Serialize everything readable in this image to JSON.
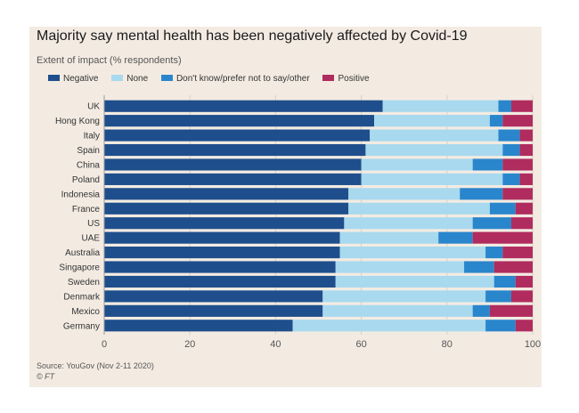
{
  "chart_data": {
    "type": "bar",
    "orientation": "horizontal",
    "stacked": true,
    "title": "Majority say mental health has been negatively affected by Covid-19",
    "subtitle": "Extent of impact (% respondents)",
    "xlim": [
      0,
      100
    ],
    "xticks": [
      "0",
      "20",
      "40",
      "60",
      "80",
      "100"
    ],
    "grid": true,
    "legend_position": "top-left",
    "categories": [
      "UK",
      "Hong Kong",
      "Italy",
      "Spain",
      "China",
      "Poland",
      "Indonesia",
      "France",
      "US",
      "UAE",
      "Australia",
      "Singapore",
      "Sweden",
      "Denmark",
      "Mexico",
      "Germany"
    ],
    "series": [
      {
        "name": "Negative",
        "color": "#1f4e8c",
        "values": [
          65,
          63,
          62,
          61,
          60,
          60,
          57,
          57,
          56,
          55,
          55,
          54,
          54,
          51,
          51,
          44
        ]
      },
      {
        "name": "None",
        "color": "#a8d9ef",
        "values": [
          27,
          27,
          30,
          32,
          26,
          33,
          26,
          33,
          30,
          23,
          34,
          30,
          37,
          38,
          35,
          45
        ]
      },
      {
        "name": "Don't know/prefer not to say/other",
        "color": "#2a86cc",
        "values": [
          3,
          3,
          5,
          4,
          7,
          4,
          10,
          6,
          9,
          8,
          4,
          7,
          5,
          6,
          4,
          7
        ]
      },
      {
        "name": "Positive",
        "color": "#b02c5e",
        "values": [
          5,
          7,
          3,
          3,
          7,
          3,
          7,
          4,
          5,
          14,
          7,
          9,
          4,
          5,
          10,
          4
        ]
      }
    ]
  },
  "source": "Source: YouGov (Nov 2-11 2020)",
  "credit": "© FT"
}
